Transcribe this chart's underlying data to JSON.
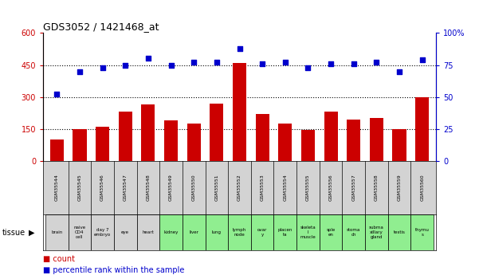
{
  "title": "GDS3052 / 1421468_at",
  "gsm_labels": [
    "GSM35544",
    "GSM35545",
    "GSM35546",
    "GSM35547",
    "GSM35548",
    "GSM35549",
    "GSM35550",
    "GSM35551",
    "GSM35552",
    "GSM35553",
    "GSM35554",
    "GSM35555",
    "GSM35556",
    "GSM35557",
    "GSM35558",
    "GSM35559",
    "GSM35560"
  ],
  "tissue_labels": [
    "brain",
    "naive\nCD4\ncell",
    "day 7\nembryо",
    "eye",
    "heart",
    "kidney",
    "liver",
    "lung",
    "lymph\nnode",
    "ovar\ny",
    "placen\nta",
    "skeleta\nl\nmuscle",
    "sple\nen",
    "stoma\nch",
    "subma\nxillary\ngland",
    "testis",
    "thymu\ns"
  ],
  "tissue_colors": [
    "#d3d3d3",
    "#d3d3d3",
    "#d3d3d3",
    "#d3d3d3",
    "#d3d3d3",
    "#90EE90",
    "#90EE90",
    "#90EE90",
    "#90EE90",
    "#90EE90",
    "#90EE90",
    "#90EE90",
    "#90EE90",
    "#90EE90",
    "#90EE90",
    "#90EE90",
    "#90EE90"
  ],
  "count_values": [
    100,
    150,
    160,
    230,
    265,
    190,
    175,
    270,
    460,
    220,
    175,
    145,
    230,
    195,
    200,
    148,
    300
  ],
  "percentile_values": [
    52,
    70,
    73,
    75,
    80,
    75,
    77,
    77,
    88,
    76,
    77,
    73,
    76,
    76,
    77,
    70,
    79
  ],
  "ylim_left": [
    0,
    600
  ],
  "ylim_right": [
    0,
    100
  ],
  "yticks_left": [
    0,
    150,
    300,
    450,
    600
  ],
  "yticks_right": [
    0,
    25,
    50,
    75,
    100
  ],
  "bar_color": "#cc0000",
  "dot_color": "#0000cc",
  "bg_color": "#ffffff",
  "gsm_bg_color": "#d3d3d3",
  "legend_count_label": "count",
  "legend_pct_label": "percentile rank within the sample"
}
